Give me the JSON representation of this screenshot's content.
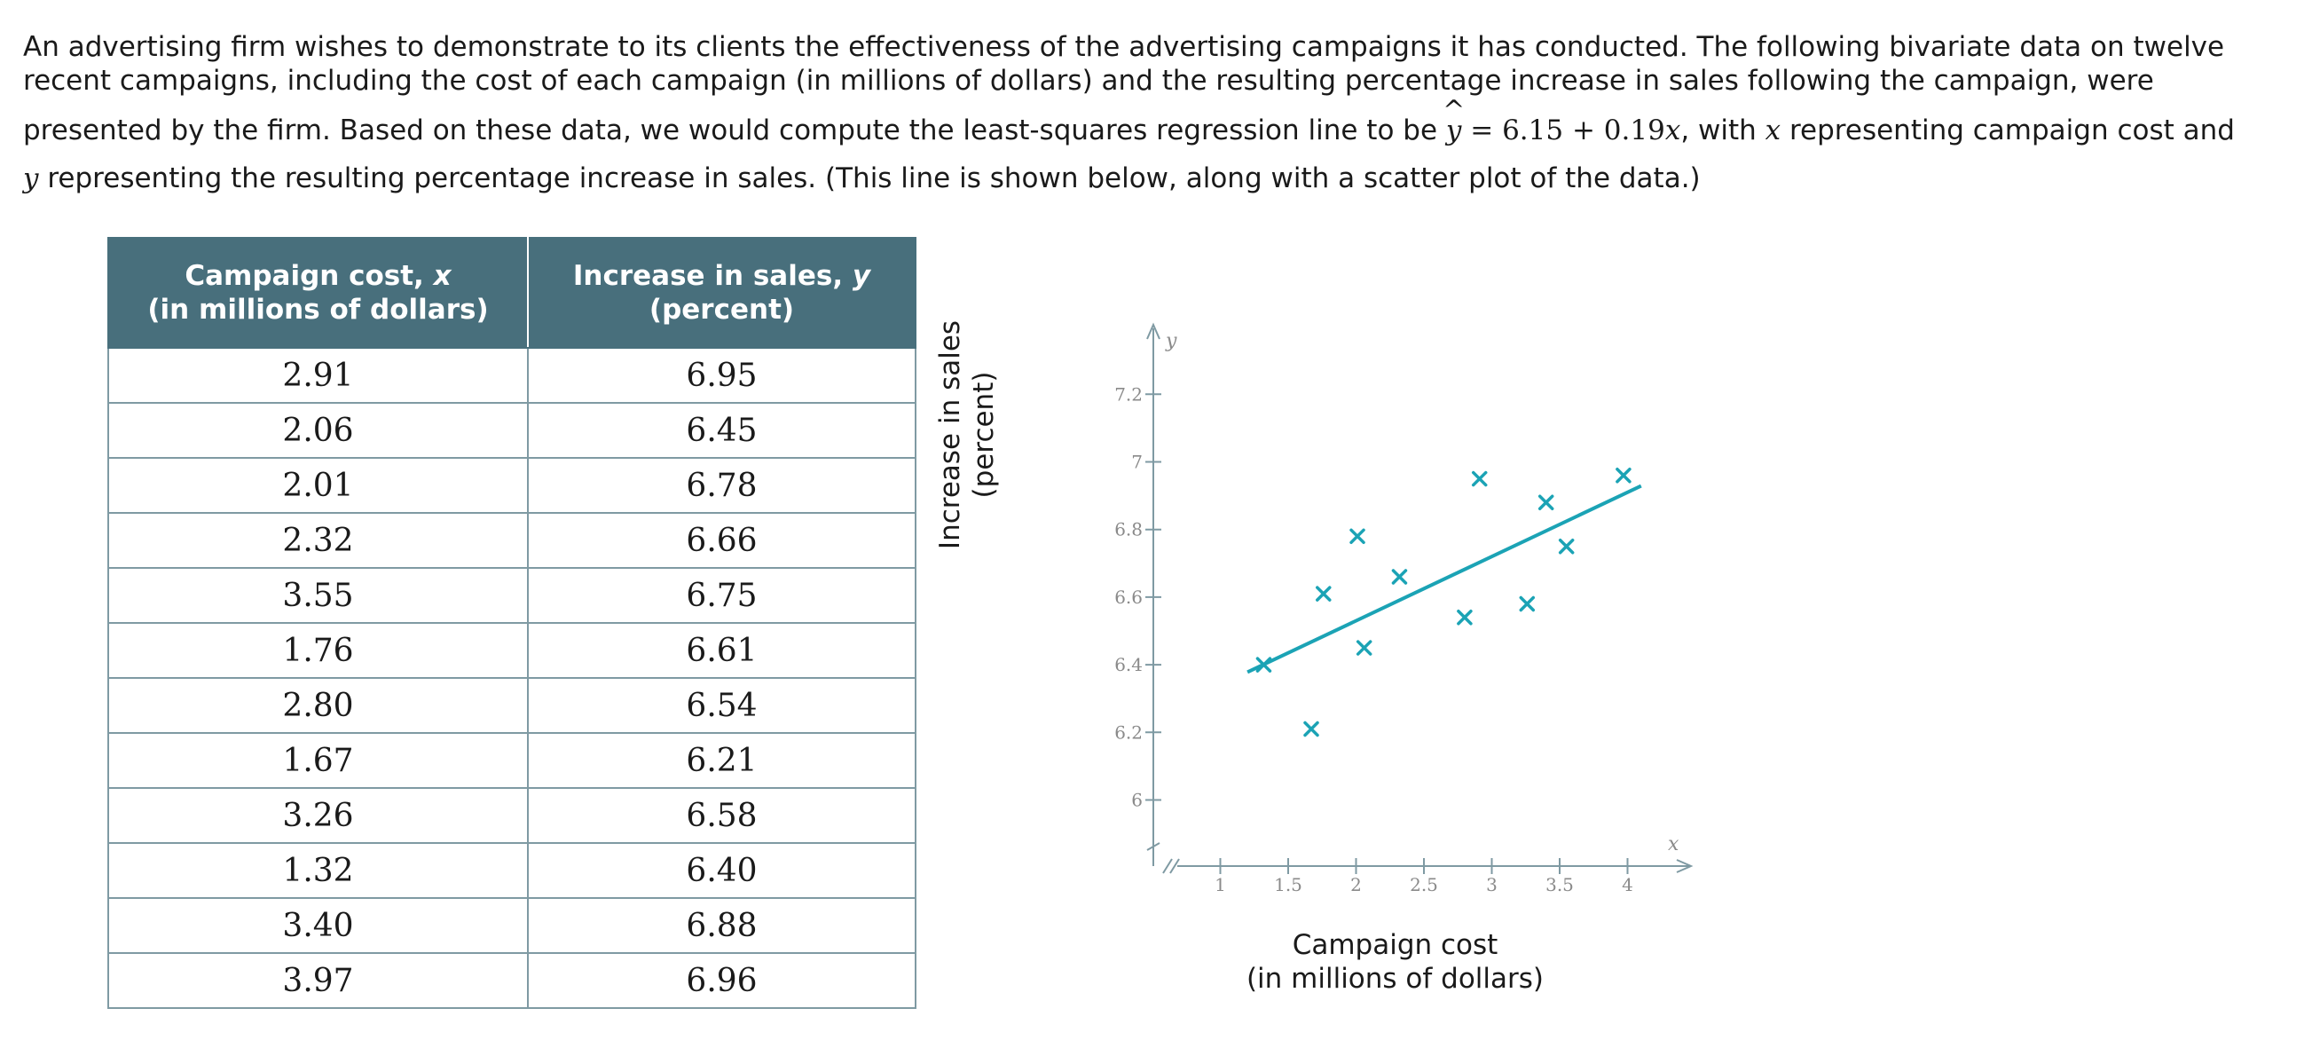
{
  "intro": {
    "line1": "An advertising firm wishes to demonstrate to its clients the effectiveness of the advertising campaigns it has conducted. The following bivariate data on twelve",
    "line2": "recent campaigns, including the cost of each campaign (in millions of dollars) and the resulting percentage increase in sales following the campaign, were",
    "line3_before": "presented by the firm. Based on these data, we would compute the least-squares regression line to be ",
    "equation_lhs": "y",
    "equation_rhs": " = 6.15 + 0.19",
    "equation_var": "x",
    "line3_after_a": ", with ",
    "x_var": "x",
    "line3_after_b": " representing campaign cost and",
    "y_var": "y",
    "line4": " representing the resulting percentage increase in sales. (This line is shown below, along with a scatter plot of the data.)"
  },
  "table": {
    "header_x_line1": "Campaign cost, ",
    "header_x_var": "x",
    "header_x_line2": "(in millions of dollars)",
    "header_y_line1": "Increase in sales, ",
    "header_y_var": "y",
    "header_y_line2": "(percent)",
    "rows": [
      {
        "x": "2.91",
        "y": "6.95"
      },
      {
        "x": "2.06",
        "y": "6.45"
      },
      {
        "x": "2.01",
        "y": "6.78"
      },
      {
        "x": "2.32",
        "y": "6.66"
      },
      {
        "x": "3.55",
        "y": "6.75"
      },
      {
        "x": "1.76",
        "y": "6.61"
      },
      {
        "x": "2.80",
        "y": "6.54"
      },
      {
        "x": "1.67",
        "y": "6.21"
      },
      {
        "x": "3.26",
        "y": "6.58"
      },
      {
        "x": "1.32",
        "y": "6.40"
      },
      {
        "x": "3.40",
        "y": "6.88"
      },
      {
        "x": "3.97",
        "y": "6.96"
      }
    ]
  },
  "chart_data": {
    "type": "scatter",
    "xlabel_line1": "Campaign cost",
    "xlabel_line2": "(in millions of dollars)",
    "ylabel_line1": "Increase in sales",
    "ylabel_line2": "(percent)",
    "x_axis_letter": "x",
    "y_axis_letter": "y",
    "x_ticks": [
      1,
      1.5,
      2,
      2.5,
      3,
      3.5,
      4
    ],
    "x_tick_labels": [
      "1",
      "1.5",
      "2",
      "2.5",
      "3",
      "3.5",
      "4"
    ],
    "y_ticks": [
      6,
      6.2,
      6.4,
      6.6,
      6.8,
      7,
      7.2
    ],
    "y_tick_labels": [
      "6",
      "6.2",
      "6.4",
      "6.6",
      "6.8",
      "7",
      "7.2"
    ],
    "axis_break": true,
    "points": [
      {
        "x": 2.91,
        "y": 6.95
      },
      {
        "x": 2.06,
        "y": 6.45
      },
      {
        "x": 2.01,
        "y": 6.78
      },
      {
        "x": 2.32,
        "y": 6.66
      },
      {
        "x": 3.55,
        "y": 6.75
      },
      {
        "x": 1.76,
        "y": 6.61
      },
      {
        "x": 2.8,
        "y": 6.54
      },
      {
        "x": 1.67,
        "y": 6.21
      },
      {
        "x": 3.26,
        "y": 6.58
      },
      {
        "x": 1.32,
        "y": 6.4
      },
      {
        "x": 3.4,
        "y": 6.88
      },
      {
        "x": 3.97,
        "y": 6.96
      }
    ],
    "regression": {
      "intercept": 6.15,
      "slope": 0.19,
      "x_start": 1.2,
      "x_end": 4.1
    },
    "color": "#1ba3b5"
  }
}
